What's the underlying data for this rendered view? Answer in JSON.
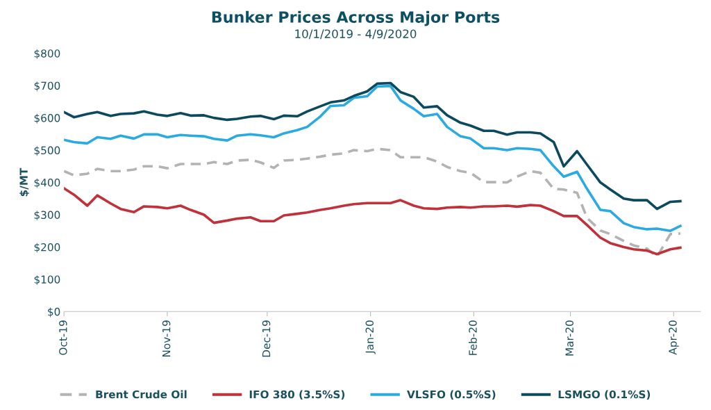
{
  "chart_data": {
    "type": "line",
    "title": "Bunker Prices Across Major Ports",
    "subtitle": "10/1/2019 - 4/9/2020",
    "ylabel": "$/MT",
    "x": [
      "2019-10-01",
      "2019-10-04",
      "2019-10-08",
      "2019-10-11",
      "2019-10-15",
      "2019-10-18",
      "2019-10-22",
      "2019-10-25",
      "2019-10-29",
      "2019-11-01",
      "2019-11-05",
      "2019-11-08",
      "2019-11-12",
      "2019-11-15",
      "2019-11-19",
      "2019-11-22",
      "2019-11-26",
      "2019-11-29",
      "2019-12-03",
      "2019-12-06",
      "2019-12-10",
      "2019-12-13",
      "2019-12-17",
      "2019-12-20",
      "2019-12-24",
      "2019-12-27",
      "2019-12-31",
      "2020-01-03",
      "2020-01-07",
      "2020-01-10",
      "2020-01-14",
      "2020-01-17",
      "2020-01-21",
      "2020-01-24",
      "2020-01-28",
      "2020-01-31",
      "2020-02-04",
      "2020-02-07",
      "2020-02-11",
      "2020-02-14",
      "2020-02-18",
      "2020-02-21",
      "2020-02-25",
      "2020-02-28",
      "2020-03-03",
      "2020-03-06",
      "2020-03-10",
      "2020-03-13",
      "2020-03-17",
      "2020-03-20",
      "2020-03-24",
      "2020-03-27",
      "2020-03-31",
      "2020-04-03"
    ],
    "series": [
      {
        "name": "Brent Crude Oil",
        "color": "#b3b3b3",
        "line_style": "dashed",
        "values": [
          435,
          422,
          427,
          442,
          435,
          435,
          440,
          450,
          450,
          444,
          457,
          457,
          457,
          463,
          457,
          468,
          470,
          462,
          445,
          468,
          470,
          474,
          480,
          486,
          490,
          500,
          497,
          504,
          500,
          478,
          478,
          478,
          465,
          448,
          435,
          430,
          401,
          401,
          400,
          418,
          435,
          430,
          380,
          378,
          368,
          290,
          251,
          240,
          219,
          205,
          195,
          170,
          240,
          242
        ]
      },
      {
        "name": "IFO 380 (3.5%S)",
        "color": "#c0313a",
        "values": [
          382,
          362,
          328,
          360,
          335,
          318,
          308,
          326,
          324,
          320,
          328,
          315,
          300,
          275,
          282,
          288,
          292,
          280,
          280,
          298,
          303,
          307,
          315,
          320,
          328,
          333,
          336,
          336,
          336,
          345,
          328,
          320,
          318,
          322,
          324,
          322,
          326,
          326,
          328,
          325,
          330,
          328,
          311,
          296,
          296,
          268,
          229,
          212,
          200,
          193,
          189,
          178,
          193,
          198
        ]
      },
      {
        "name": "VLSFO (0.5%S)",
        "color": "#29abe2",
        "values": [
          532,
          525,
          521,
          540,
          535,
          545,
          536,
          549,
          549,
          540,
          547,
          545,
          543,
          535,
          530,
          545,
          549,
          546,
          540,
          552,
          562,
          572,
          605,
          637,
          639,
          662,
          667,
          697,
          699,
          654,
          628,
          605,
          612,
          572,
          543,
          536,
          506,
          506,
          500,
          506,
          504,
          500,
          450,
          418,
          433,
          380,
          315,
          311,
          274,
          262,
          255,
          257,
          250,
          265
        ]
      },
      {
        "name": "LSMGO (0.1%S)",
        "color": "#0b4a5e",
        "values": [
          618,
          602,
          612,
          618,
          606,
          612,
          614,
          620,
          610,
          606,
          615,
          607,
          608,
          600,
          594,
          597,
          604,
          606,
          596,
          607,
          605,
          620,
          636,
          648,
          654,
          668,
          682,
          706,
          708,
          680,
          665,
          632,
          636,
          608,
          585,
          576,
          560,
          560,
          548,
          555,
          555,
          552,
          525,
          450,
          497,
          455,
          400,
          378,
          350,
          345,
          345,
          318,
          340,
          342
        ]
      }
    ],
    "xlim": [
      "2019-10-01",
      "2020-04-09"
    ],
    "xticks": [
      {
        "value": "2019-10-01",
        "label": "Oct-19"
      },
      {
        "value": "2019-11-01",
        "label": "Nov-19"
      },
      {
        "value": "2019-12-01",
        "label": "Dec-19"
      },
      {
        "value": "2020-01-01",
        "label": "Jan-20"
      },
      {
        "value": "2020-02-01",
        "label": "Feb-20"
      },
      {
        "value": "2020-03-01",
        "label": "Mar-20"
      },
      {
        "value": "2020-04-01",
        "label": "Apr-20"
      }
    ],
    "ylim": [
      0,
      800
    ],
    "yticks": [
      {
        "value": 0,
        "label": "$0"
      },
      {
        "value": 100,
        "label": "$100"
      },
      {
        "value": 200,
        "label": "$200"
      },
      {
        "value": 300,
        "label": "$300"
      },
      {
        "value": 400,
        "label": "$400"
      },
      {
        "value": 500,
        "label": "$500"
      },
      {
        "value": 600,
        "label": "$600"
      },
      {
        "value": 700,
        "label": "$700"
      },
      {
        "value": 800,
        "label": "$800"
      }
    ],
    "grid": false,
    "legend": "bottom",
    "marker": "none",
    "line_style": "solid"
  }
}
